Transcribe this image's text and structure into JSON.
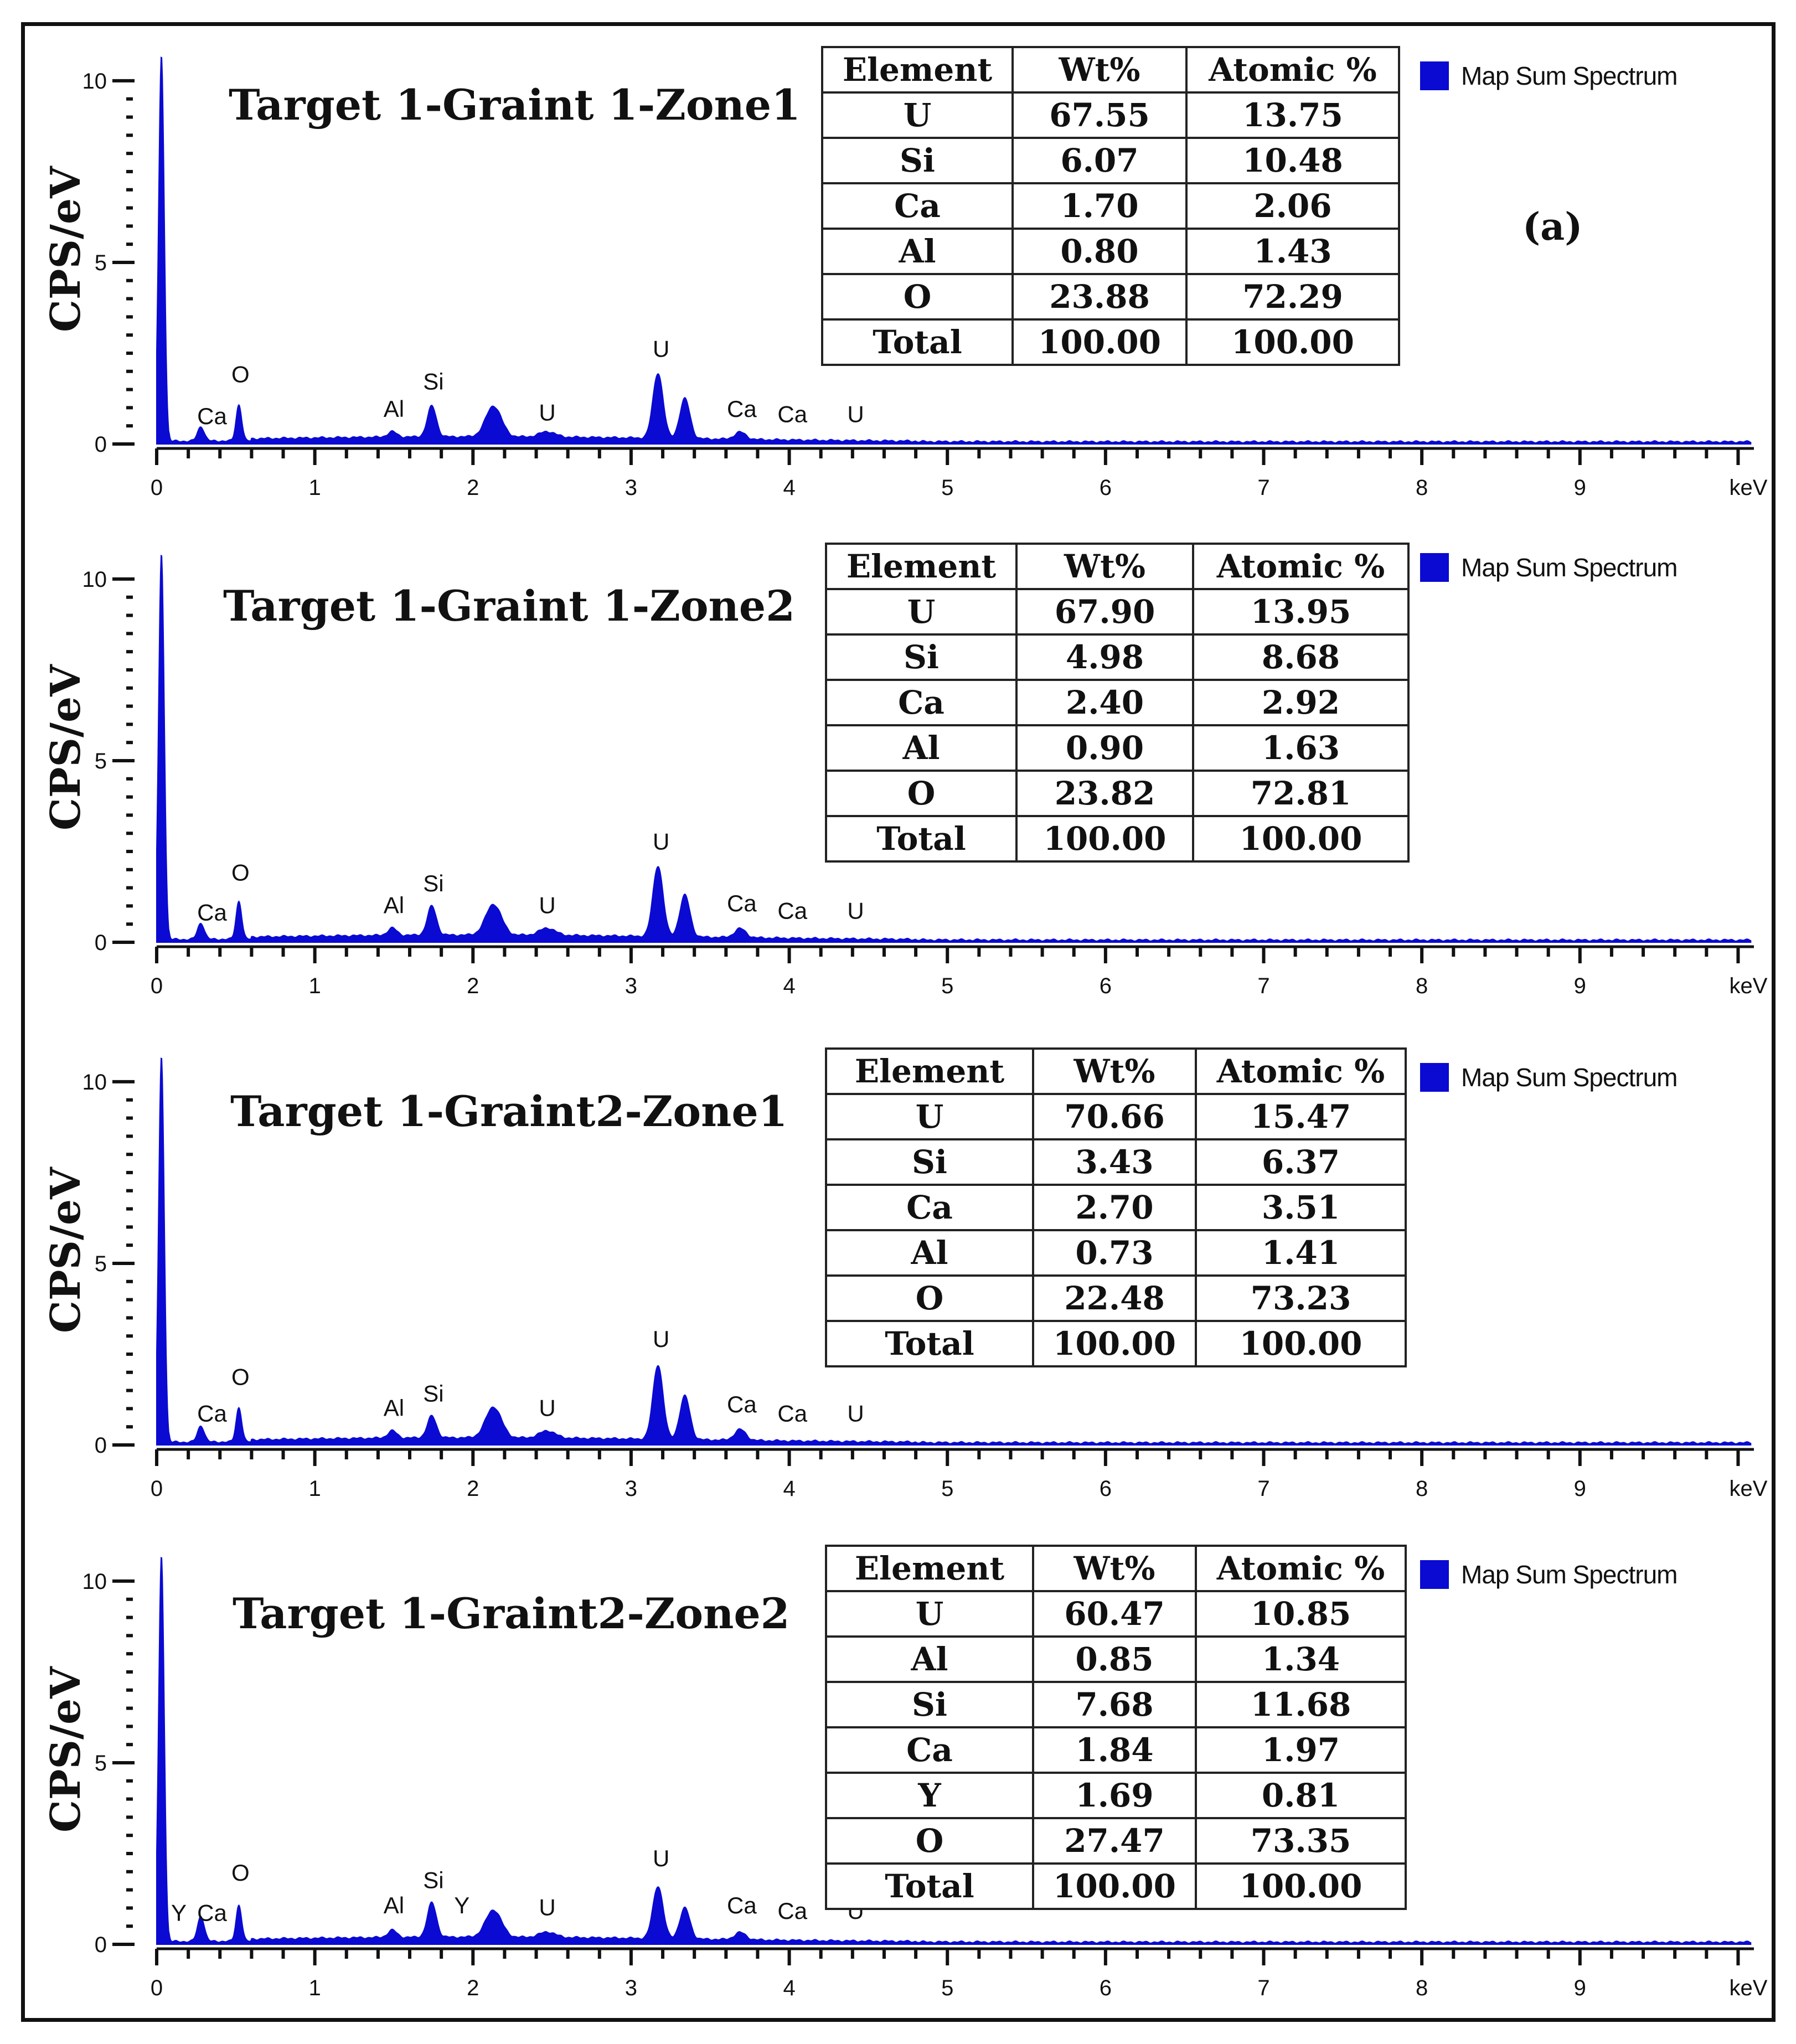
{
  "figure_label": "(a)",
  "chart_data": [
    {
      "type": "area",
      "title": "Target 1-Graint 1-Zone1",
      "xlabel": "keV",
      "ylabel": "CPS/eV",
      "xlim": [
        0,
        10.1
      ],
      "ylim": [
        0,
        10.7
      ],
      "xticks": [
        0,
        1,
        2,
        3,
        4,
        5,
        6,
        7,
        8,
        9
      ],
      "yticks": [
        0,
        5,
        10
      ],
      "legend": "Map Sum Spectrum",
      "color": "#0a0ad2",
      "peaks": [
        {
          "x": 0.03,
          "y": 10.7,
          "w": 0.025
        },
        {
          "x": 0.28,
          "y": 0.4,
          "w": 0.03
        },
        {
          "x": 0.52,
          "y": 1.0,
          "w": 0.025
        },
        {
          "x": 1.49,
          "y": 0.15,
          "w": 0.04
        },
        {
          "x": 1.74,
          "y": 0.85,
          "w": 0.04
        },
        {
          "x": 2.13,
          "y": 0.85,
          "w": 0.07
        },
        {
          "x": 2.47,
          "y": 0.15,
          "w": 0.07
        },
        {
          "x": 3.17,
          "y": 1.8,
          "w": 0.045
        },
        {
          "x": 3.34,
          "y": 1.1,
          "w": 0.045
        },
        {
          "x": 3.69,
          "y": 0.2,
          "w": 0.05
        }
      ],
      "peak_labels": [
        {
          "text": "Ca",
          "x": 0.35,
          "y": 0.55
        },
        {
          "text": "O",
          "x": 0.53,
          "y": 1.7
        },
        {
          "text": "Al",
          "x": 1.5,
          "y": 0.75
        },
        {
          "text": "Si",
          "x": 1.75,
          "y": 1.5
        },
        {
          "text": "U",
          "x": 2.47,
          "y": 0.65
        },
        {
          "text": "U",
          "x": 3.19,
          "y": 2.4
        },
        {
          "text": "Ca",
          "x": 3.7,
          "y": 0.75
        },
        {
          "text": "Ca",
          "x": 4.02,
          "y": 0.6
        },
        {
          "text": "U",
          "x": 4.42,
          "y": 0.6
        }
      ],
      "table": {
        "headers": [
          "Element",
          "Wt%",
          "Atomic %"
        ],
        "rows": [
          [
            "U",
            "67.55",
            "13.75"
          ],
          [
            "Si",
            "6.07",
            "10.48"
          ],
          [
            "Ca",
            "1.70",
            "2.06"
          ],
          [
            "Al",
            "0.80",
            "1.43"
          ],
          [
            "O",
            "23.88",
            "72.29"
          ],
          [
            "Total",
            "100.00",
            "100.00"
          ]
        ]
      }
    },
    {
      "type": "area",
      "title": "Target 1-Graint 1-Zone2",
      "xlabel": "keV",
      "ylabel": "CPS/eV",
      "xlim": [
        0,
        10.1
      ],
      "ylim": [
        0,
        10.7
      ],
      "xticks": [
        0,
        1,
        2,
        3,
        4,
        5,
        6,
        7,
        8,
        9
      ],
      "yticks": [
        0,
        5,
        10
      ],
      "legend": "Map Sum Spectrum",
      "color": "#0a0ad2",
      "peaks": [
        {
          "x": 0.03,
          "y": 10.7,
          "w": 0.025
        },
        {
          "x": 0.28,
          "y": 0.45,
          "w": 0.03
        },
        {
          "x": 0.52,
          "y": 1.05,
          "w": 0.025
        },
        {
          "x": 1.49,
          "y": 0.2,
          "w": 0.04
        },
        {
          "x": 1.74,
          "y": 0.8,
          "w": 0.04
        },
        {
          "x": 2.13,
          "y": 0.85,
          "w": 0.07
        },
        {
          "x": 2.47,
          "y": 0.2,
          "w": 0.07
        },
        {
          "x": 3.17,
          "y": 1.95,
          "w": 0.045
        },
        {
          "x": 3.34,
          "y": 1.15,
          "w": 0.045
        },
        {
          "x": 3.69,
          "y": 0.25,
          "w": 0.05
        }
      ],
      "peak_labels": [
        {
          "text": "Ca",
          "x": 0.35,
          "y": 0.6
        },
        {
          "text": "O",
          "x": 0.53,
          "y": 1.7
        },
        {
          "text": "Al",
          "x": 1.5,
          "y": 0.8
        },
        {
          "text": "Si",
          "x": 1.75,
          "y": 1.4
        },
        {
          "text": "U",
          "x": 2.47,
          "y": 0.8
        },
        {
          "text": "U",
          "x": 3.19,
          "y": 2.55
        },
        {
          "text": "Ca",
          "x": 3.7,
          "y": 0.85
        },
        {
          "text": "Ca",
          "x": 4.02,
          "y": 0.65
        },
        {
          "text": "U",
          "x": 4.42,
          "y": 0.65
        }
      ],
      "table": {
        "headers": [
          "Element",
          "Wt%",
          "Atomic %"
        ],
        "rows": [
          [
            "U",
            "67.90",
            "13.95"
          ],
          [
            "Si",
            "4.98",
            "8.68"
          ],
          [
            "Ca",
            "2.40",
            "2.92"
          ],
          [
            "Al",
            "0.90",
            "1.63"
          ],
          [
            "O",
            "23.82",
            "72.81"
          ],
          [
            "Total",
            "100.00",
            "100.00"
          ]
        ]
      }
    },
    {
      "type": "area",
      "title": "Target 1-Graint2-Zone1",
      "xlabel": "keV",
      "ylabel": "CPS/eV",
      "xlim": [
        0,
        10.1
      ],
      "ylim": [
        0,
        10.7
      ],
      "xticks": [
        0,
        1,
        2,
        3,
        4,
        5,
        6,
        7,
        8,
        9
      ],
      "yticks": [
        0,
        5,
        10
      ],
      "legend": "Map Sum Spectrum",
      "color": "#0a0ad2",
      "peaks": [
        {
          "x": 0.03,
          "y": 10.7,
          "w": 0.025
        },
        {
          "x": 0.28,
          "y": 0.45,
          "w": 0.03
        },
        {
          "x": 0.52,
          "y": 0.95,
          "w": 0.025
        },
        {
          "x": 1.49,
          "y": 0.2,
          "w": 0.04
        },
        {
          "x": 1.74,
          "y": 0.6,
          "w": 0.04
        },
        {
          "x": 2.13,
          "y": 0.85,
          "w": 0.07
        },
        {
          "x": 2.47,
          "y": 0.2,
          "w": 0.07
        },
        {
          "x": 3.17,
          "y": 2.05,
          "w": 0.045
        },
        {
          "x": 3.34,
          "y": 1.2,
          "w": 0.045
        },
        {
          "x": 3.69,
          "y": 0.3,
          "w": 0.05
        }
      ],
      "peak_labels": [
        {
          "text": "Ca",
          "x": 0.35,
          "y": 0.65
        },
        {
          "text": "O",
          "x": 0.53,
          "y": 1.65
        },
        {
          "text": "Al",
          "x": 1.5,
          "y": 0.8
        },
        {
          "text": "Si",
          "x": 1.75,
          "y": 1.2
        },
        {
          "text": "U",
          "x": 2.47,
          "y": 0.8
        },
        {
          "text": "U",
          "x": 3.19,
          "y": 2.7
        },
        {
          "text": "Ca",
          "x": 3.7,
          "y": 0.9
        },
        {
          "text": "Ca",
          "x": 4.02,
          "y": 0.65
        },
        {
          "text": "U",
          "x": 4.42,
          "y": 0.65
        }
      ],
      "table": {
        "headers": [
          "Element",
          "Wt%",
          "Atomic %"
        ],
        "rows": [
          [
            "U",
            "70.66",
            "15.47"
          ],
          [
            "Si",
            "3.43",
            "6.37"
          ],
          [
            "Ca",
            "2.70",
            "3.51"
          ],
          [
            "Al",
            "0.73",
            "1.41"
          ],
          [
            "O",
            "22.48",
            "73.23"
          ],
          [
            "Total",
            "100.00",
            "100.00"
          ]
        ]
      }
    },
    {
      "type": "area",
      "title": "Target 1-Graint2-Zone2",
      "xlabel": "keV",
      "ylabel": "CPS/eV",
      "xlim": [
        0,
        10.1
      ],
      "ylim": [
        0,
        10.7
      ],
      "xticks": [
        0,
        1,
        2,
        3,
        4,
        5,
        6,
        7,
        8,
        9
      ],
      "yticks": [
        0,
        5,
        10
      ],
      "legend": "Map Sum Spectrum",
      "color": "#0a0ad2",
      "peaks": [
        {
          "x": 0.03,
          "y": 10.7,
          "w": 0.025
        },
        {
          "x": 0.28,
          "y": 0.7,
          "w": 0.03
        },
        {
          "x": 0.52,
          "y": 1.0,
          "w": 0.025
        },
        {
          "x": 1.49,
          "y": 0.2,
          "w": 0.04
        },
        {
          "x": 1.74,
          "y": 0.95,
          "w": 0.04
        },
        {
          "x": 2.13,
          "y": 0.75,
          "w": 0.07
        },
        {
          "x": 2.47,
          "y": 0.15,
          "w": 0.07
        },
        {
          "x": 3.17,
          "y": 1.45,
          "w": 0.045
        },
        {
          "x": 3.34,
          "y": 0.85,
          "w": 0.045
        },
        {
          "x": 3.69,
          "y": 0.2,
          "w": 0.05
        }
      ],
      "peak_labels": [
        {
          "text": "Y",
          "x": 0.14,
          "y": 0.65
        },
        {
          "text": "Ca",
          "x": 0.35,
          "y": 0.65
        },
        {
          "text": "O",
          "x": 0.53,
          "y": 1.75
        },
        {
          "text": "Al",
          "x": 1.5,
          "y": 0.85
        },
        {
          "text": "Si",
          "x": 1.75,
          "y": 1.55
        },
        {
          "text": "Y",
          "x": 1.93,
          "y": 0.85
        },
        {
          "text": "U",
          "x": 2.47,
          "y": 0.8
        },
        {
          "text": "U",
          "x": 3.19,
          "y": 2.15
        },
        {
          "text": "Ca",
          "x": 3.7,
          "y": 0.85
        },
        {
          "text": "Ca",
          "x": 4.02,
          "y": 0.7
        },
        {
          "text": "U",
          "x": 4.42,
          "y": 0.7
        }
      ],
      "table": {
        "headers": [
          "Element",
          "Wt%",
          "Atomic %"
        ],
        "rows": [
          [
            "U",
            "60.47",
            "10.85"
          ],
          [
            "Al",
            "0.85",
            "1.34"
          ],
          [
            "Si",
            "7.68",
            "11.68"
          ],
          [
            "Ca",
            "1.84",
            "1.97"
          ],
          [
            "Y",
            "1.69",
            "0.81"
          ],
          [
            "O",
            "27.47",
            "73.35"
          ],
          [
            "Total",
            "100.00",
            "100.00"
          ]
        ]
      }
    }
  ]
}
